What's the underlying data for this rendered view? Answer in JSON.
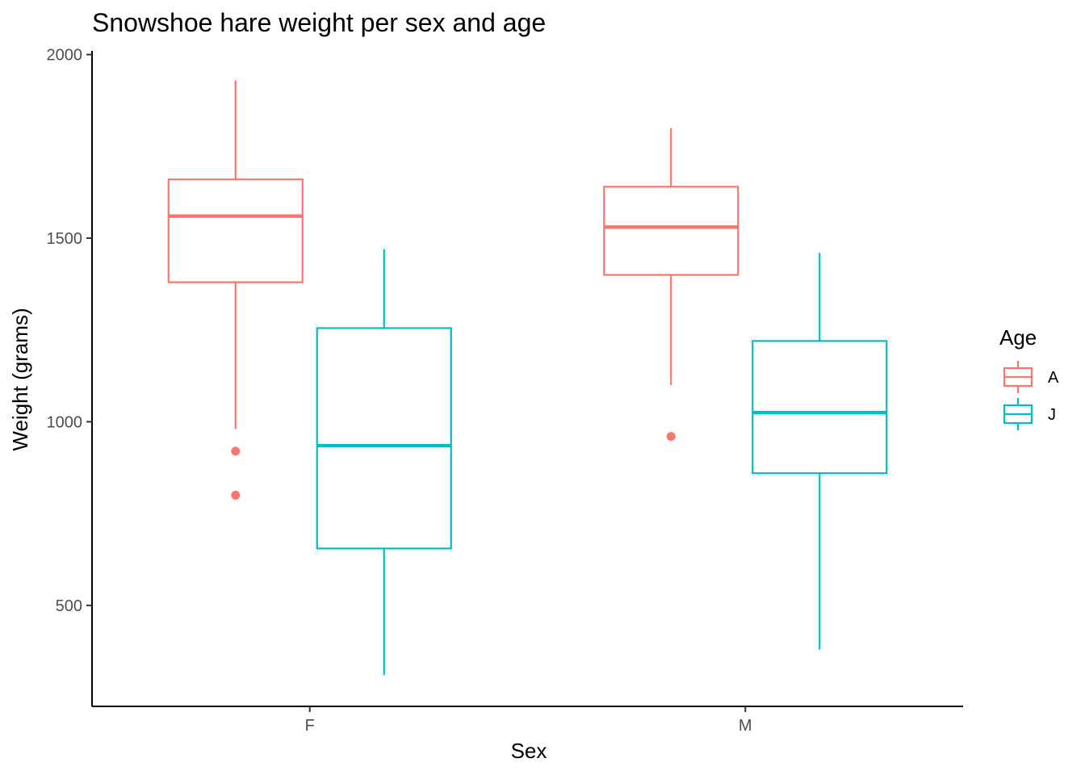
{
  "chart_data": {
    "type": "boxplot",
    "title": "Snowshoe hare weight per sex and age",
    "xlabel": "Sex",
    "ylabel": "Weight (grams)",
    "categories": [
      "F",
      "M"
    ],
    "ylim": [
      225,
      2010
    ],
    "yticks": [
      500,
      1000,
      1500,
      2000
    ],
    "grid": false,
    "legend": {
      "title": "Age",
      "position": "right",
      "entries": [
        "A",
        "J"
      ]
    },
    "colors": {
      "A": "#F8766D",
      "J": "#00BFC4"
    },
    "series": [
      {
        "name": "A",
        "boxes": [
          {
            "category": "F",
            "whisker_low": 980,
            "q1": 1380,
            "median": 1560,
            "q3": 1660,
            "whisker_high": 1930,
            "outliers": [
              920,
              800
            ]
          },
          {
            "category": "M",
            "whisker_low": 1100,
            "q1": 1400,
            "median": 1530,
            "q3": 1640,
            "whisker_high": 1800,
            "outliers": [
              960
            ]
          }
        ]
      },
      {
        "name": "J",
        "boxes": [
          {
            "category": "F",
            "whisker_low": 310,
            "q1": 655,
            "median": 935,
            "q3": 1255,
            "whisker_high": 1470,
            "outliers": []
          },
          {
            "category": "M",
            "whisker_low": 380,
            "q1": 860,
            "median": 1025,
            "q3": 1220,
            "whisker_high": 1460,
            "outliers": []
          }
        ]
      }
    ]
  }
}
